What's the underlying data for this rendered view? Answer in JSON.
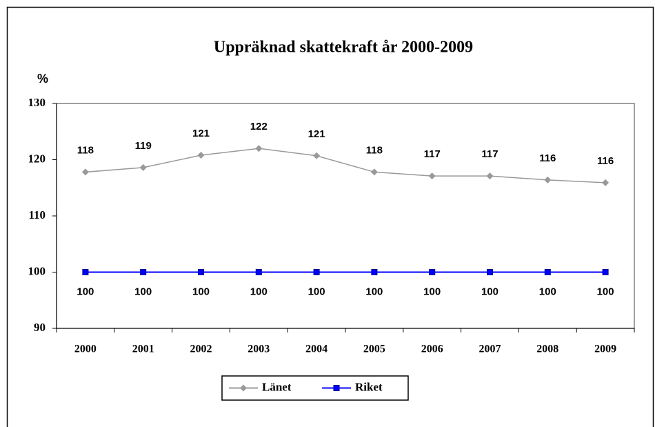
{
  "chart_data": {
    "type": "line",
    "title": "Uppräknad skattekraft år 2000-2009",
    "y_label": "%",
    "categories": [
      "2000",
      "2001",
      "2002",
      "2003",
      "2004",
      "2005",
      "2006",
      "2007",
      "2008",
      "2009"
    ],
    "series": [
      {
        "name": "Länet",
        "color": "#999999",
        "marker": "diamond",
        "values": [
          117.8,
          118.6,
          120.8,
          122.0,
          120.7,
          117.8,
          117.1,
          117.1,
          116.4,
          115.9
        ],
        "value_labels": [
          "118",
          "119",
          "121",
          "122",
          "121",
          "118",
          "117",
          "117",
          "116",
          "116"
        ]
      },
      {
        "name": "Riket",
        "color": "#0000ff",
        "marker": "square",
        "values": [
          100,
          100,
          100,
          100,
          100,
          100,
          100,
          100,
          100,
          100
        ]
      }
    ],
    "ylim": [
      90,
      130
    ],
    "yticks": [
      90,
      100,
      110,
      120,
      130
    ],
    "legend": "bottom"
  }
}
